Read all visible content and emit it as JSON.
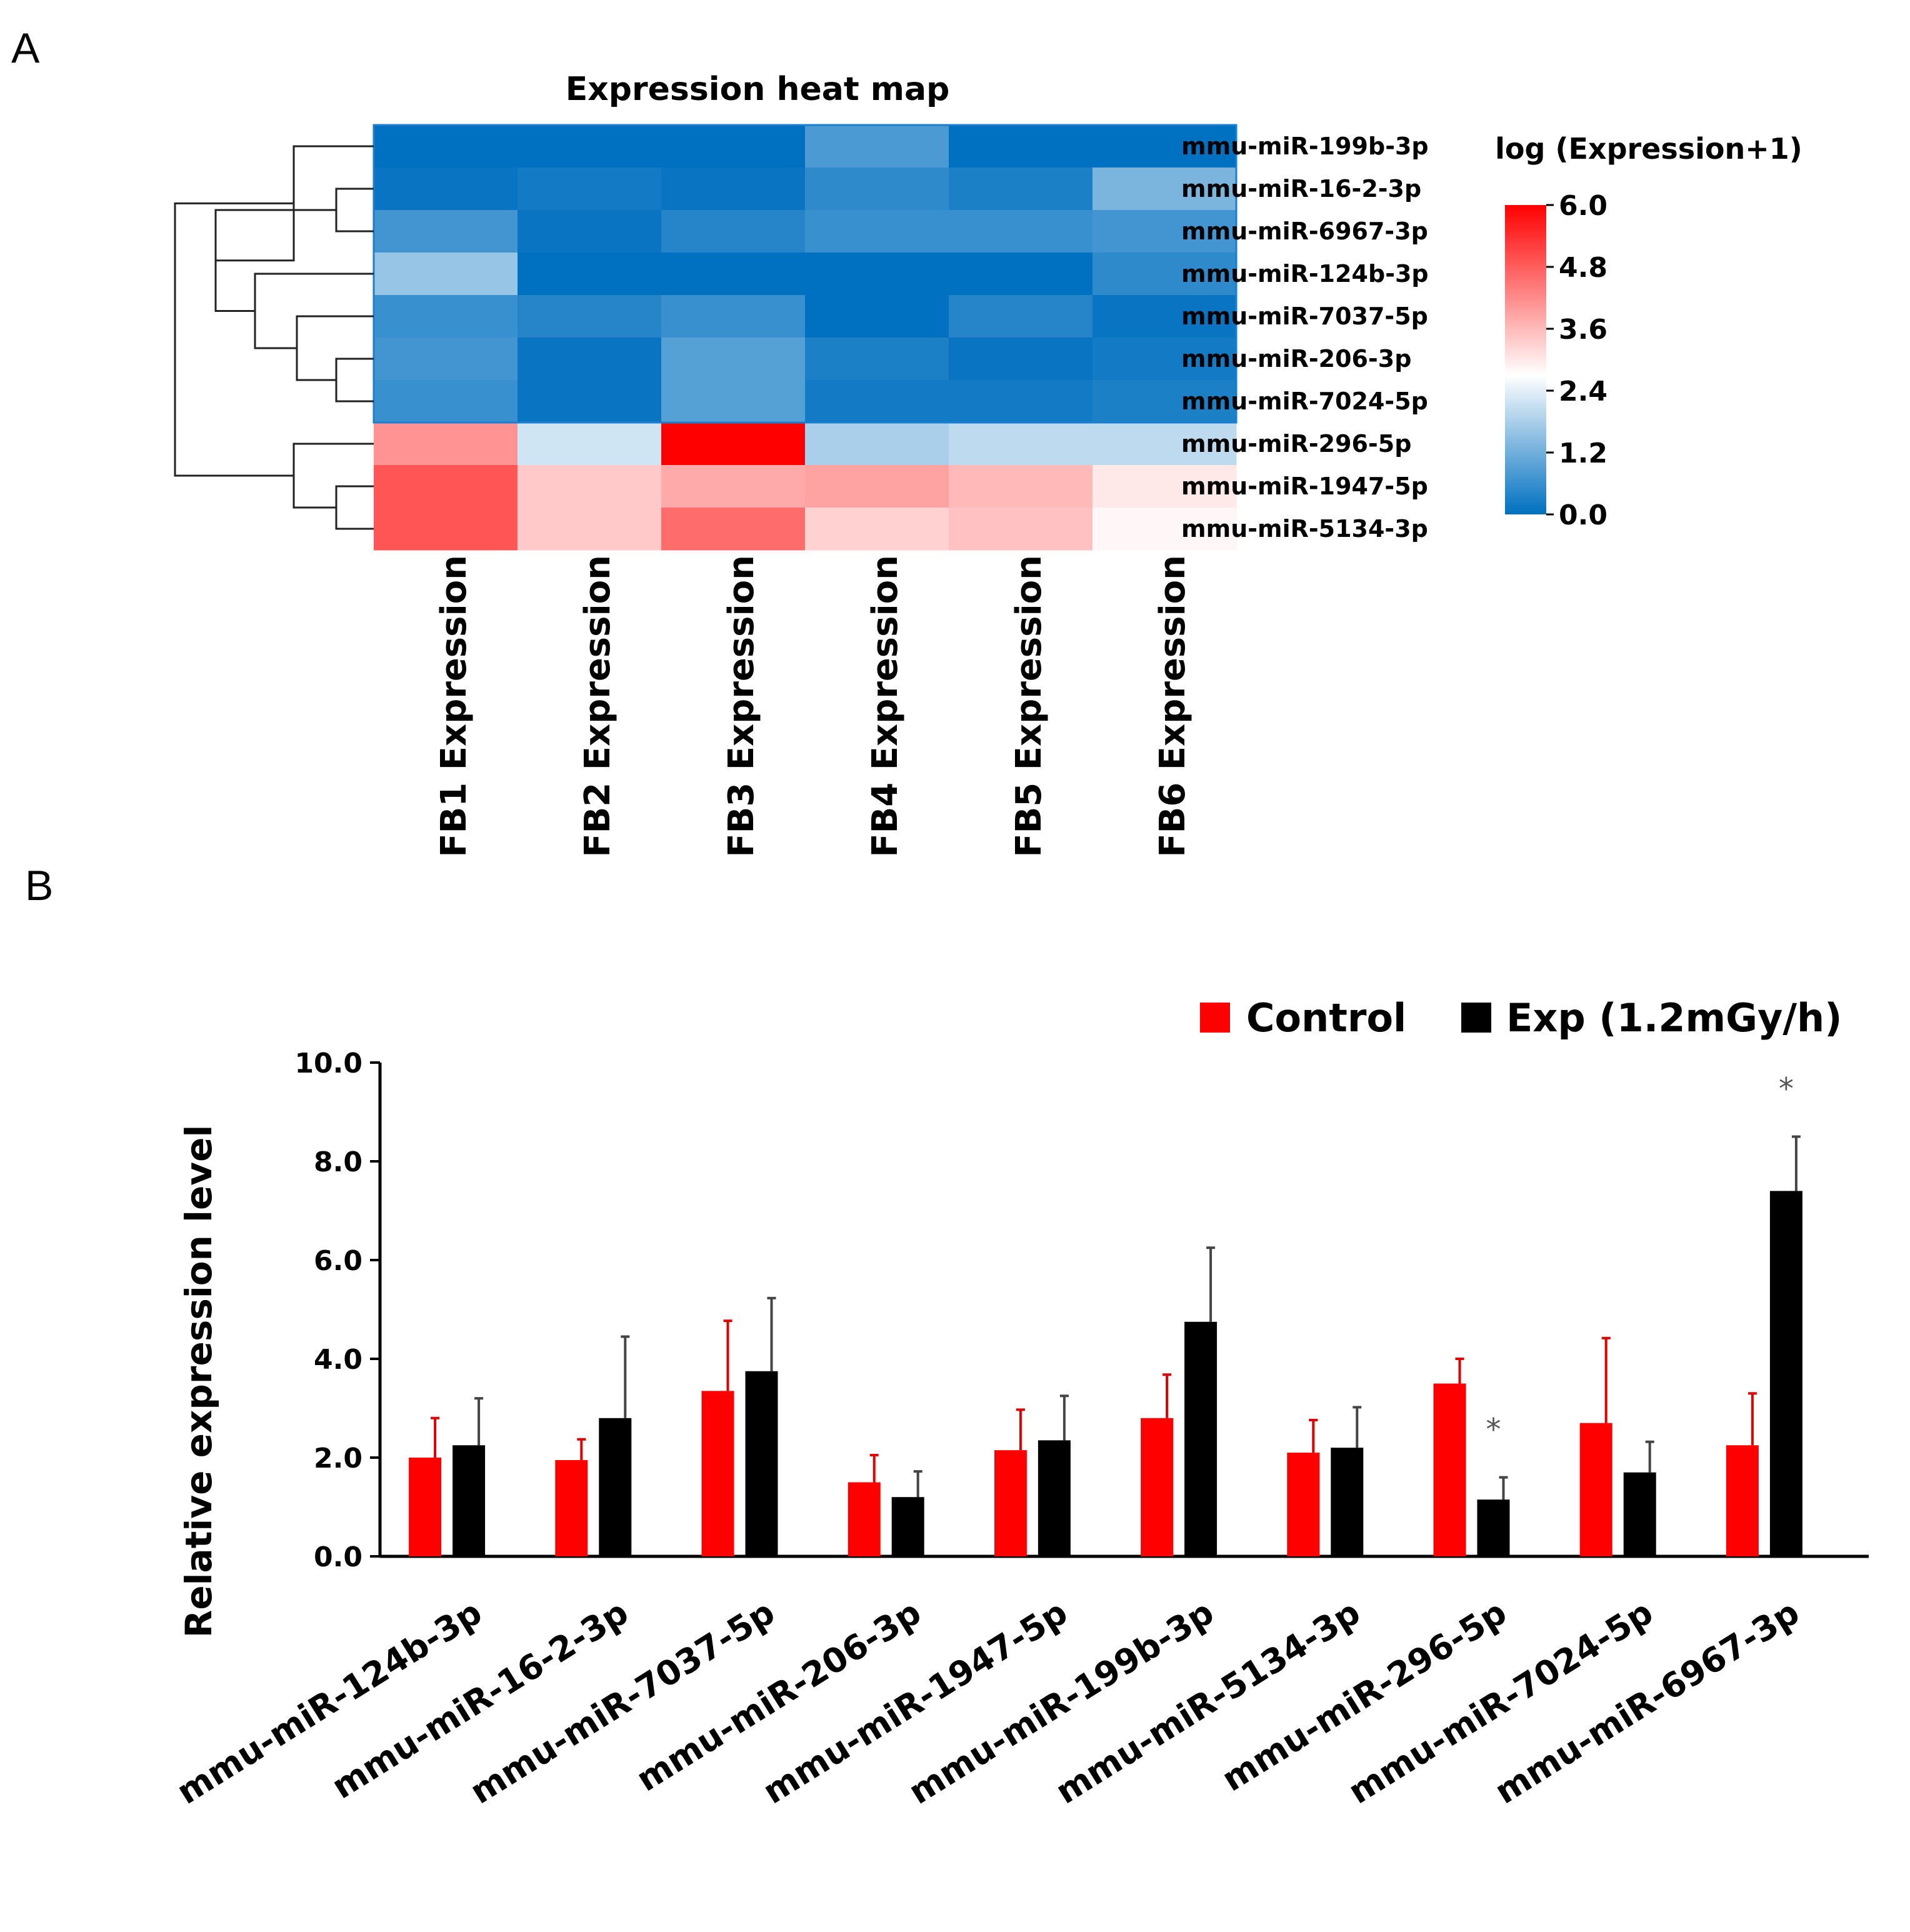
{
  "panels": {
    "a_label": "A",
    "b_label": "B"
  },
  "colors": {
    "control": "#ff0000",
    "exp": "#000000",
    "heat_low": "#0070c0",
    "heat_mid": "#ffffff",
    "heat_high": "#ff0000"
  },
  "chart_data": [
    {
      "type": "heatmap",
      "title": "Expression heat map",
      "columns": [
        "FB1 Expression",
        "FB2 Expression",
        "FB3 Expression",
        "FB4 Expression",
        "FB5 Expression",
        "FB6 Expression"
      ],
      "rows": [
        "mmu-miR-199b-3p",
        "mmu-miR-16-2-3p",
        "mmu-miR-6967-3p",
        "mmu-miR-124b-3p",
        "mmu-miR-7037-5p",
        "mmu-miR-206-3p",
        "mmu-miR-7024-5p",
        "mmu-miR-296-5p",
        "mmu-miR-1947-5p",
        "mmu-miR-5134-3p"
      ],
      "values": [
        [
          0.0,
          0.0,
          0.0,
          0.8,
          0.0,
          0.0
        ],
        [
          0.1,
          0.2,
          0.1,
          0.5,
          0.3,
          1.3
        ],
        [
          0.7,
          0.1,
          0.4,
          0.6,
          0.6,
          0.7
        ],
        [
          1.6,
          0.0,
          0.0,
          0.0,
          0.0,
          0.5
        ],
        [
          0.6,
          0.4,
          0.6,
          0.0,
          0.4,
          0.1
        ],
        [
          0.7,
          0.1,
          0.9,
          0.3,
          0.1,
          0.2
        ],
        [
          0.6,
          0.1,
          0.9,
          0.2,
          0.2,
          0.3
        ],
        [
          4.1,
          2.2,
          6.0,
          1.8,
          2.0,
          2.0
        ],
        [
          4.9,
          3.4,
          3.8,
          3.9,
          3.6,
          3.0
        ],
        [
          4.9,
          3.4,
          4.6,
          3.3,
          3.5,
          2.8
        ]
      ],
      "colorbar": {
        "title": "log (Expression+1)",
        "min": 0.0,
        "max": 6.0,
        "ticks": [
          "6.0",
          "4.8",
          "3.6",
          "2.4",
          "1.2",
          "0.0"
        ]
      },
      "dendrogram": "row"
    },
    {
      "type": "bar",
      "categories": [
        "mmu-miR-124b-3p",
        "mmu-miR-16-2-3p",
        "mmu-miR-7037-5p",
        "mmu-miR-206-3p",
        "mmu-miR-1947-5p",
        "mmu-miR-199b-3p",
        "mmu-miR-5134-3p",
        "mmu-miR-296-5p",
        "mmu-miR-7024-5p",
        "mmu-miR-6967-3p"
      ],
      "series": [
        {
          "name": "Control",
          "values": [
            2.0,
            1.95,
            3.35,
            1.5,
            2.15,
            2.8,
            2.1,
            3.5,
            2.7,
            2.25
          ],
          "errors": [
            0.8,
            0.42,
            1.42,
            0.55,
            0.82,
            0.88,
            0.66,
            0.5,
            1.72,
            1.05
          ]
        },
        {
          "name": "Exp (1.2mGy/h)",
          "values": [
            2.25,
            2.8,
            3.75,
            1.2,
            2.35,
            4.75,
            2.2,
            1.15,
            1.7,
            7.4
          ],
          "errors": [
            0.95,
            1.65,
            1.48,
            0.52,
            0.9,
            1.5,
            0.82,
            0.45,
            0.62,
            1.1
          ]
        }
      ],
      "significance": [
        "",
        "",
        "",
        "",
        "",
        "",
        "",
        "*",
        "",
        "*"
      ],
      "ylabel": "Relative expression level",
      "ylim": [
        0,
        10
      ],
      "yticks": [
        "0.0",
        "2.0",
        "4.0",
        "6.0",
        "8.0",
        "10.0"
      ],
      "legend_position": "top-right"
    }
  ]
}
